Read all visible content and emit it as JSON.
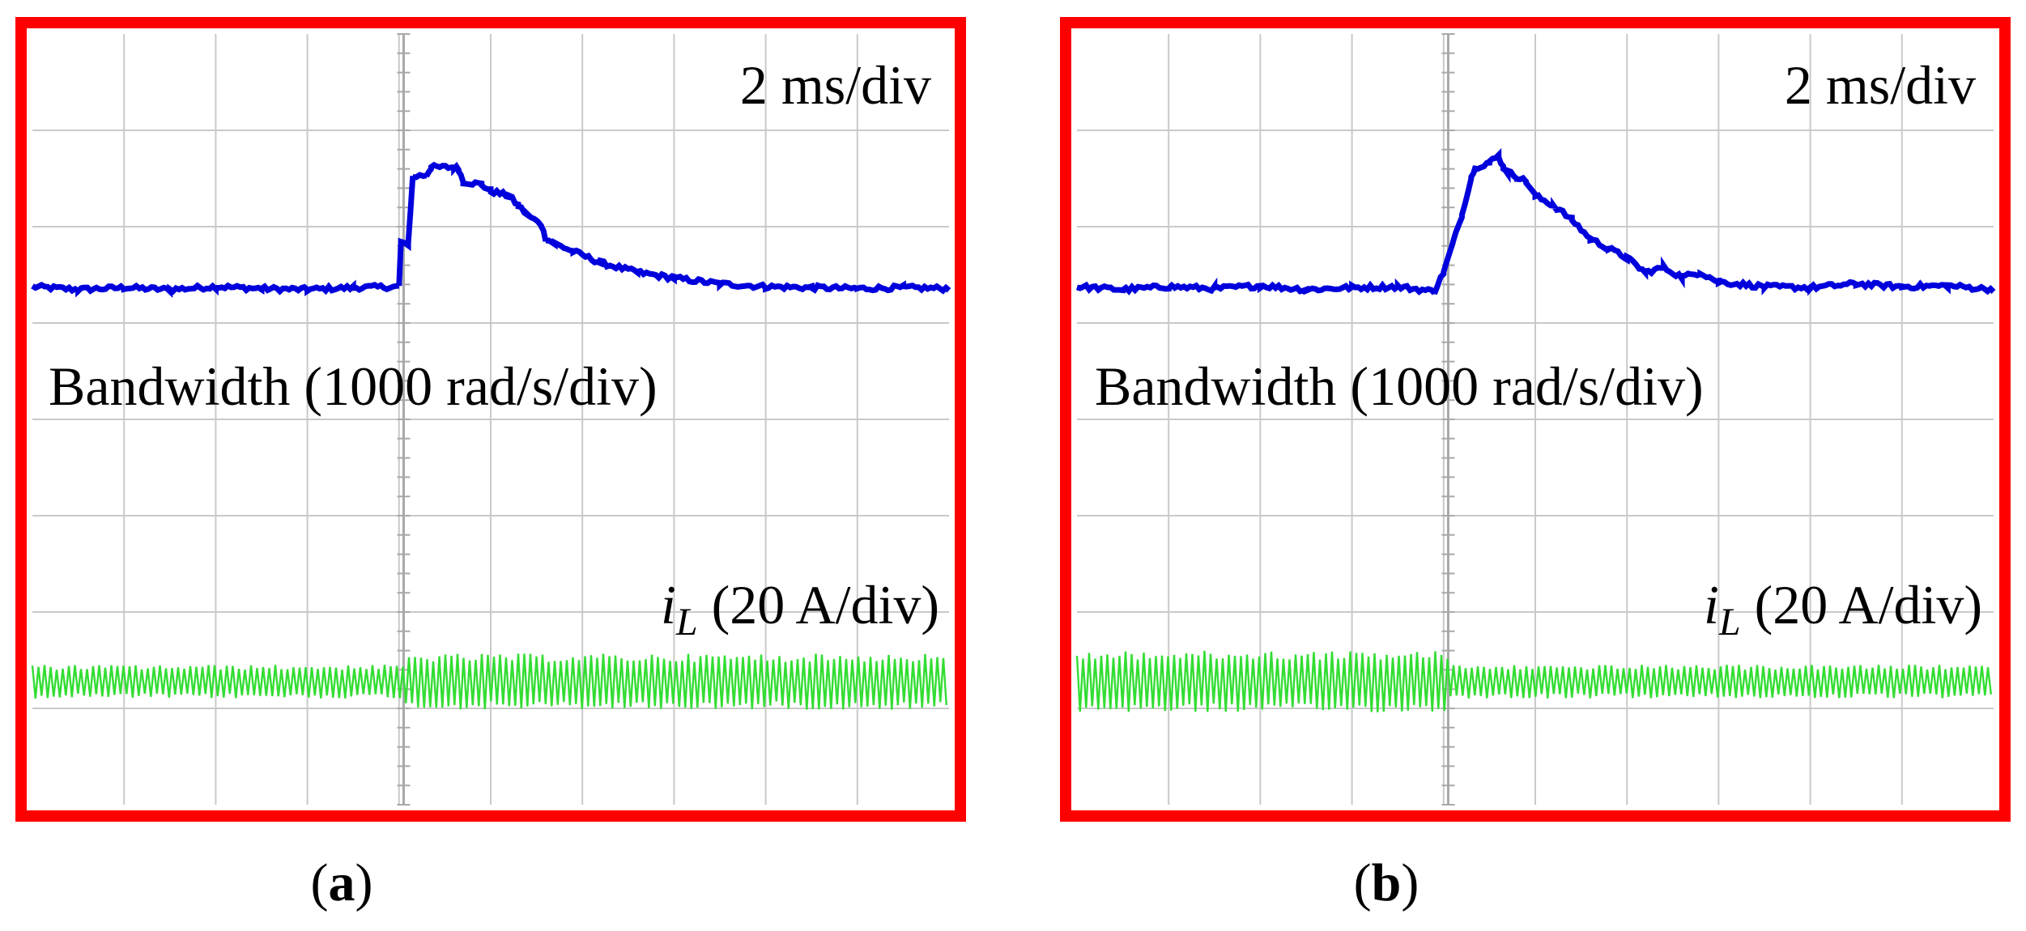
{
  "figure": {
    "panels": [
      {
        "caption_letter": "a"
      },
      {
        "caption_letter": "b"
      }
    ]
  },
  "colors": {
    "frame": "#ff0000",
    "bandwidth_trace": "#0000dd",
    "current_trace": "#33dd33",
    "grid": "#c9c9c9",
    "background": "#ffffff"
  },
  "chart_data": [
    {
      "type": "line",
      "panel": "a",
      "time_scale": "2 ms/div",
      "grid": true,
      "divisions": {
        "x": 10,
        "y": 8
      },
      "series": [
        {
          "name": "Bandwidth",
          "label": "Bandwidth (1000 rad/s/div)",
          "trace_level_div": 1,
          "step_div": 4.05,
          "points": [
            [
              0,
              0.05
            ],
            [
              0.5,
              0.02
            ],
            [
              1,
              0.04
            ],
            [
              1.5,
              0.02
            ],
            [
              2,
              0.05
            ],
            [
              2.5,
              0.03
            ],
            [
              3,
              0.02
            ],
            [
              3.5,
              0.04
            ],
            [
              4,
              0.05
            ],
            [
              4.02,
              0.5
            ],
            [
              4.1,
              0.5
            ],
            [
              4.15,
              1.2
            ],
            [
              4.3,
              1.22
            ],
            [
              4.35,
              1.3
            ],
            [
              4.6,
              1.3
            ],
            [
              4.65,
              1.28
            ],
            [
              4.7,
              1.15
            ],
            [
              4.9,
              1.12
            ],
            [
              5.0,
              1.05
            ],
            [
              5.2,
              1.0
            ],
            [
              5.3,
              0.9
            ],
            [
              5.4,
              0.8
            ],
            [
              5.55,
              0.7
            ],
            [
              5.6,
              0.55
            ],
            [
              5.7,
              0.5
            ],
            [
              5.9,
              0.42
            ],
            [
              6.2,
              0.3
            ],
            [
              6.6,
              0.2
            ],
            [
              7,
              0.14
            ],
            [
              7.5,
              0.08
            ],
            [
              8,
              0.05
            ],
            [
              8.5,
              0.04
            ],
            [
              9,
              0.03
            ],
            [
              9.5,
              0.04
            ],
            [
              10,
              0.03
            ]
          ]
        },
        {
          "name": "i_L",
          "label_main": "i",
          "label_sub": "L",
          "label_rest": " (20 A/div)",
          "trace_level_div": 1,
          "step_div": 4.05,
          "ripple_before_div": 0.3,
          "ripple_after_div": 0.5
        }
      ]
    },
    {
      "type": "line",
      "panel": "b",
      "time_scale": "2 ms/div",
      "grid": true,
      "divisions": {
        "x": 10,
        "y": 8
      },
      "series": [
        {
          "name": "Bandwidth",
          "label": "Bandwidth (1000 rad/s/div)",
          "trace_level_div": 1,
          "step_div": 4.05,
          "points": [
            [
              0,
              0.05
            ],
            [
              0.5,
              0.02
            ],
            [
              1,
              0.05
            ],
            [
              1.5,
              0.03
            ],
            [
              2,
              0.06
            ],
            [
              2.5,
              0.02
            ],
            [
              3,
              0.04
            ],
            [
              3.5,
              0.05
            ],
            [
              3.9,
              0.0
            ],
            [
              4.0,
              0.2
            ],
            [
              4.1,
              0.5
            ],
            [
              4.2,
              0.8
            ],
            [
              4.3,
              1.2
            ],
            [
              4.35,
              1.3
            ],
            [
              4.5,
              1.35
            ],
            [
              4.6,
              1.42
            ],
            [
              4.65,
              1.3
            ],
            [
              4.7,
              1.25
            ],
            [
              4.8,
              1.2
            ],
            [
              4.9,
              1.15
            ],
            [
              5.0,
              1.0
            ],
            [
              5.2,
              0.9
            ],
            [
              5.4,
              0.75
            ],
            [
              5.6,
              0.55
            ],
            [
              5.8,
              0.45
            ],
            [
              6.0,
              0.35
            ],
            [
              6.2,
              0.2
            ],
            [
              6.4,
              0.25
            ],
            [
              6.6,
              0.15
            ],
            [
              6.8,
              0.2
            ],
            [
              7,
              0.1
            ],
            [
              7.5,
              0.05
            ],
            [
              8,
              0.04
            ],
            [
              8.5,
              0.08
            ],
            [
              9,
              0.05
            ],
            [
              9.5,
              0.06
            ],
            [
              10,
              0.02
            ]
          ]
        },
        {
          "name": "i_L",
          "label_main": "i",
          "label_sub": "L",
          "label_rest": " (20 A/div)",
          "trace_level_div": 1,
          "step_div": 4.05,
          "ripple_before_div": 0.55,
          "ripple_after_div": 0.3
        }
      ]
    }
  ]
}
